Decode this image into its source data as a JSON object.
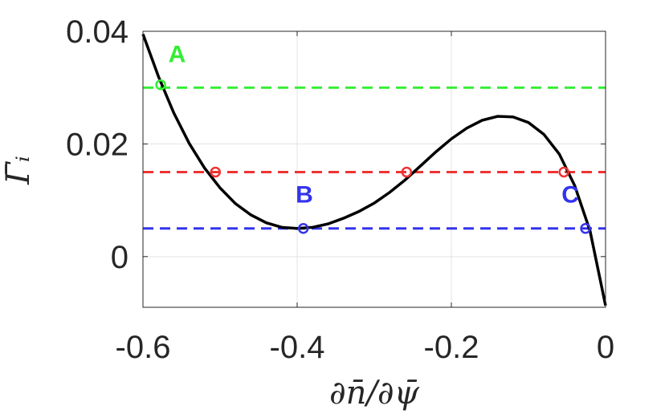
{
  "chart_data": {
    "type": "line",
    "xlabel": "∂n̄/∂ψ̄",
    "ylabel": "Γ̄ᵢ",
    "xlim": [
      -0.6,
      0
    ],
    "ylim": [
      -0.009,
      0.04
    ],
    "x_ticks": [
      -0.6,
      -0.4,
      -0.2,
      0
    ],
    "x_tick_labels": [
      "-0.6",
      "-0.4",
      "-0.2",
      "0"
    ],
    "y_ticks": [
      0,
      0.02,
      0.04
    ],
    "y_tick_labels": [
      "0",
      "0.02",
      "0.04"
    ],
    "grid": true,
    "curve": {
      "color": "#000000",
      "x": [
        -0.6,
        -0.58,
        -0.56,
        -0.54,
        -0.52,
        -0.5,
        -0.48,
        -0.46,
        -0.44,
        -0.42,
        -0.4,
        -0.38,
        -0.36,
        -0.34,
        -0.32,
        -0.3,
        -0.28,
        -0.26,
        -0.24,
        -0.22,
        -0.2,
        -0.18,
        -0.16,
        -0.14,
        -0.12,
        -0.1,
        -0.08,
        -0.06,
        -0.04,
        -0.02,
        0
      ],
      "y": [
        0.0395,
        0.032,
        0.0255,
        0.0201,
        0.0157,
        0.0122,
        0.0094,
        0.0074,
        0.006,
        0.0052,
        0.005,
        0.0052,
        0.0058,
        0.0068,
        0.008,
        0.0095,
        0.0114,
        0.0136,
        0.0161,
        0.0186,
        0.0209,
        0.0228,
        0.0242,
        0.0249,
        0.0248,
        0.0238,
        0.0217,
        0.0182,
        0.0126,
        0.0045,
        -0.0087
      ]
    },
    "hlines": [
      {
        "y": 0.03,
        "color": "#33ee33"
      },
      {
        "y": 0.015,
        "color": "#ee3333"
      },
      {
        "y": 0.005,
        "color": "#3333ee"
      }
    ],
    "markers": [
      {
        "x": -0.577,
        "y": 0.0305,
        "color": "#33ee33"
      },
      {
        "x": -0.506,
        "y": 0.015,
        "color": "#ee3333"
      },
      {
        "x": -0.258,
        "y": 0.015,
        "color": "#ee3333"
      },
      {
        "x": -0.054,
        "y": 0.015,
        "color": "#ee3333"
      },
      {
        "x": -0.392,
        "y": 0.005,
        "color": "#3333ee"
      },
      {
        "x": -0.026,
        "y": 0.005,
        "color": "#3333ee"
      }
    ],
    "annotations": [
      {
        "text": "A",
        "x": -0.567,
        "y": 0.0345,
        "color": "#33ee33"
      },
      {
        "text": "B",
        "x": -0.402,
        "y": 0.0096,
        "color": "#3333ee"
      },
      {
        "text": "C",
        "x": -0.057,
        "y": 0.0096,
        "color": "#3333ee"
      }
    ]
  }
}
